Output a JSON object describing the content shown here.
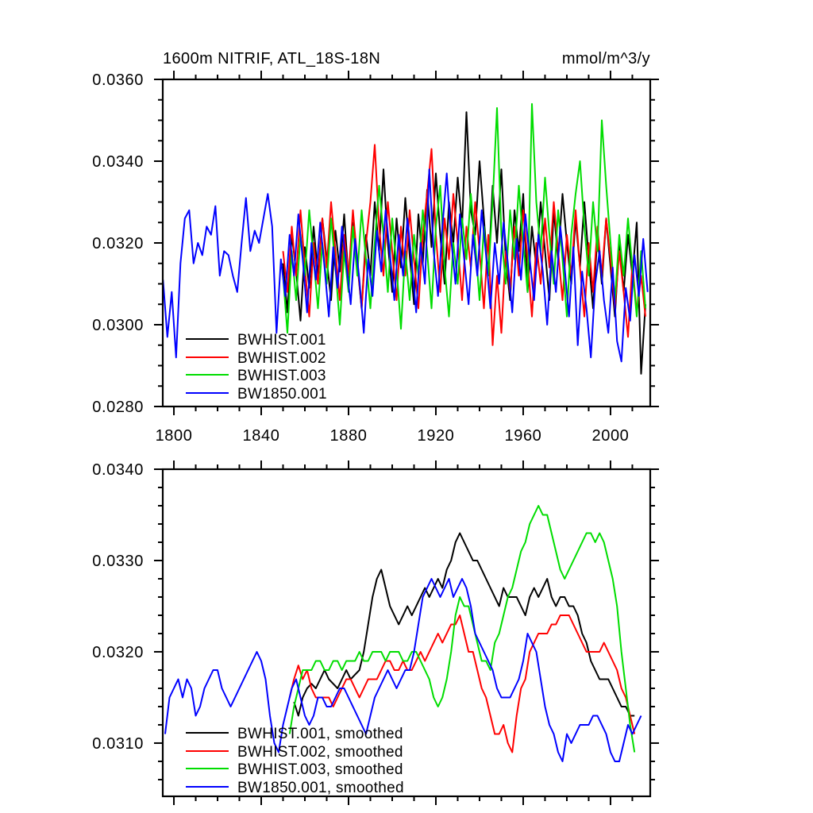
{
  "figure": {
    "background": "#ffffff",
    "axis_color": "#000000"
  },
  "chart_data": [
    {
      "type": "line",
      "title": "1600m NITRIF, ATL_18S-18N",
      "units": "mmol/m^3/y",
      "xlabel": "",
      "ylabel": "",
      "grid": false,
      "legend_position": "lower-left-inside",
      "xlim": [
        1794.9,
        2018.2
      ],
      "ylim": [
        0.028,
        0.036
      ],
      "x_ticks": [
        1800,
        1840,
        1880,
        1920,
        1960,
        2000
      ],
      "x_tick_labels": [
        "1800",
        "1840",
        "1880",
        "1920",
        "1960",
        "2000"
      ],
      "x_minor_step": 10,
      "y_ticks": [
        0.028,
        0.03,
        0.032,
        0.034,
        0.036
      ],
      "y_tick_labels": [
        "0.0280",
        "0.0300",
        "0.0320",
        "0.0340",
        "0.0360"
      ],
      "y_minor_step": 0.0005,
      "legend": [
        "BWHIST.001",
        "BWHIST.002",
        "BWHIST.003",
        "BW1850.001"
      ],
      "series": [
        {
          "name": "BWHIST.001",
          "color": "#000000",
          "x_start": 1850,
          "x_step": 2,
          "values": [
            0.0315,
            0.0303,
            0.0322,
            0.0313,
            0.0301,
            0.0319,
            0.0309,
            0.0324,
            0.0312,
            0.0326,
            0.0316,
            0.0306,
            0.0323,
            0.0313,
            0.0327,
            0.0311,
            0.0325,
            0.0315,
            0.0304,
            0.0322,
            0.0312,
            0.033,
            0.0318,
            0.0338,
            0.032,
            0.0308,
            0.0326,
            0.0314,
            0.0331,
            0.0317,
            0.0305,
            0.0327,
            0.0315,
            0.0333,
            0.0319,
            0.0337,
            0.0322,
            0.031,
            0.033,
            0.032,
            0.0336,
            0.0324,
            0.0352,
            0.0328,
            0.0322,
            0.034,
            0.0326,
            0.0312,
            0.0334,
            0.032,
            0.0338,
            0.0316,
            0.0306,
            0.0328,
            0.0318,
            0.0332,
            0.0308,
            0.0324,
            0.0314,
            0.033,
            0.0318,
            0.0306,
            0.0328,
            0.0316,
            0.0332,
            0.032,
            0.031,
            0.0326,
            0.0314,
            0.033,
            0.0316,
            0.0304,
            0.0322,
            0.031,
            0.0326,
            0.0314,
            0.0302,
            0.032,
            0.0308,
            0.0322,
            0.0312,
            0.0325,
            0.0288,
            0.0305
          ]
        },
        {
          "name": "BWHIST.002",
          "color": "#ff0000",
          "x_start": 1850,
          "x_step": 2,
          "values": [
            0.0318,
            0.0308,
            0.0324,
            0.0312,
            0.0328,
            0.0314,
            0.0302,
            0.032,
            0.031,
            0.0326,
            0.0314,
            0.033,
            0.0318,
            0.0306,
            0.0322,
            0.0312,
            0.0328,
            0.0316,
            0.0304,
            0.032,
            0.033,
            0.0344,
            0.0324,
            0.0312,
            0.033,
            0.0318,
            0.0306,
            0.0324,
            0.0312,
            0.0328,
            0.0316,
            0.0304,
            0.0322,
            0.0332,
            0.0343,
            0.0322,
            0.0308,
            0.0326,
            0.0316,
            0.0332,
            0.032,
            0.0306,
            0.0324,
            0.0314,
            0.033,
            0.0318,
            0.0304,
            0.0322,
            0.0295,
            0.0312,
            0.0298,
            0.0318,
            0.0308,
            0.0324,
            0.0312,
            0.0328,
            0.0316,
            0.0302,
            0.032,
            0.031,
            0.0326,
            0.0314,
            0.033,
            0.0318,
            0.0306,
            0.0322,
            0.0312,
            0.0328,
            0.0314,
            0.0302,
            0.032,
            0.0308,
            0.0324,
            0.0312,
            0.0326,
            0.0316,
            0.0304,
            0.0318,
            0.0308,
            0.0297,
            0.0315,
            0.0303,
            0.0312,
            0.0302
          ]
        },
        {
          "name": "BWHIST.003",
          "color": "#00dd00",
          "x_start": 1850,
          "x_step": 2,
          "values": [
            0.0312,
            0.0298,
            0.0318,
            0.0306,
            0.0322,
            0.0312,
            0.0328,
            0.0316,
            0.0304,
            0.032,
            0.031,
            0.0326,
            0.0314,
            0.03,
            0.0318,
            0.0308,
            0.0324,
            0.0312,
            0.0328,
            0.0316,
            0.0304,
            0.032,
            0.0334,
            0.0322,
            0.0308,
            0.0326,
            0.0314,
            0.0299,
            0.0318,
            0.0306,
            0.0322,
            0.0312,
            0.0328,
            0.0318,
            0.0304,
            0.0324,
            0.0334,
            0.0314,
            0.0302,
            0.032,
            0.031,
            0.0326,
            0.0316,
            0.0332,
            0.032,
            0.0306,
            0.0324,
            0.0312,
            0.033,
            0.0353,
            0.0322,
            0.031,
            0.0328,
            0.0316,
            0.0334,
            0.032,
            0.0308,
            0.0354,
            0.033,
            0.0318,
            0.0336,
            0.0322,
            0.031,
            0.0328,
            0.0316,
            0.0302,
            0.0322,
            0.0332,
            0.034,
            0.0324,
            0.0312,
            0.033,
            0.0318,
            0.035,
            0.0334,
            0.032,
            0.0306,
            0.0322,
            0.0312,
            0.0326,
            0.0314,
            0.0302,
            0.0318,
            0.0304
          ]
        },
        {
          "name": "BW1850.001",
          "color": "#0000ff",
          "x_start": 1795,
          "x_step": 2,
          "values": [
            0.0311,
            0.0297,
            0.0308,
            0.0292,
            0.0315,
            0.0326,
            0.0328,
            0.0315,
            0.032,
            0.0317,
            0.0324,
            0.0322,
            0.0329,
            0.0312,
            0.0318,
            0.0317,
            0.0312,
            0.0308,
            0.032,
            0.0331,
            0.0318,
            0.0323,
            0.032,
            0.0326,
            0.0332,
            0.0324,
            0.0298,
            0.0316,
            0.0307,
            0.0322,
            0.0312,
            0.0327,
            0.0316,
            0.0303,
            0.032,
            0.0311,
            0.0325,
            0.0314,
            0.0302,
            0.0319,
            0.0309,
            0.0324,
            0.0315,
            0.0305,
            0.0321,
            0.0311,
            0.0298,
            0.0316,
            0.0307,
            0.0323,
            0.0313,
            0.0328,
            0.0317,
            0.0306,
            0.0322,
            0.0312,
            0.0326,
            0.0315,
            0.0303,
            0.032,
            0.031,
            0.0338,
            0.0318,
            0.0307,
            0.0324,
            0.0337,
            0.0321,
            0.031,
            0.0327,
            0.0316,
            0.0305,
            0.0322,
            0.0312,
            0.0328,
            0.0317,
            0.0304,
            0.032,
            0.031,
            0.0325,
            0.0315,
            0.0303,
            0.0321,
            0.0311,
            0.0327,
            0.0316,
            0.0306,
            0.0322,
            0.0313,
            0.03,
            0.0318,
            0.0308,
            0.0324,
            0.0314,
            0.0302,
            0.0319,
            0.0295,
            0.0313,
            0.0304,
            0.0292,
            0.031,
            0.0318,
            0.0306,
            0.0298,
            0.0314,
            0.0296,
            0.0291,
            0.0309,
            0.0301,
            0.0317,
            0.0307,
            0.0321,
            0.0308
          ]
        }
      ]
    },
    {
      "type": "line",
      "title": "",
      "units": "",
      "xlabel": "",
      "ylabel": "",
      "grid": false,
      "legend_position": "lower-left-inside",
      "xlim": [
        1794.9,
        2018.2
      ],
      "ylim": [
        0.030417,
        0.034
      ],
      "x_ticks": [
        1800,
        1840,
        1880,
        1920,
        1960,
        2000
      ],
      "x_tick_labels": [],
      "x_minor_step": 10,
      "y_ticks": [
        0.031,
        0.032,
        0.033,
        0.034
      ],
      "y_tick_labels": [
        "0.0310",
        "0.0320",
        "0.0330",
        "0.0340"
      ],
      "y_minor_step": 0.0002,
      "legend": [
        "BWHIST.001, smoothed",
        "BWHIST.002, smoothed",
        "BWHIST.003, smoothed",
        "BW1850.001, smoothed"
      ],
      "series": [
        {
          "name": "BWHIST.001, smoothed",
          "color": "#000000",
          "x_start": 1855,
          "x_step": 2,
          "values": [
            0.03145,
            0.0313,
            0.0315,
            0.0316,
            0.03165,
            0.0316,
            0.0317,
            0.0318,
            0.0317,
            0.03165,
            0.0316,
            0.0317,
            0.0318,
            0.0317,
            0.03175,
            0.0318,
            0.032,
            0.0323,
            0.0326,
            0.0328,
            0.0329,
            0.0327,
            0.0325,
            0.0324,
            0.0323,
            0.0324,
            0.0325,
            0.0324,
            0.0325,
            0.0326,
            0.0327,
            0.0326,
            0.0327,
            0.0328,
            0.0327,
            0.0329,
            0.033,
            0.0332,
            0.0333,
            0.0332,
            0.0331,
            0.033,
            0.033,
            0.0329,
            0.0328,
            0.0327,
            0.0326,
            0.0325,
            0.0327,
            0.0326,
            0.0326,
            0.0326,
            0.0325,
            0.0324,
            0.0326,
            0.0327,
            0.0326,
            0.0327,
            0.0328,
            0.0326,
            0.0325,
            0.0326,
            0.0326,
            0.0325,
            0.0325,
            0.0324,
            0.0322,
            0.0321,
            0.0319,
            0.0318,
            0.0317,
            0.0317,
            0.0317,
            0.0316,
            0.0315,
            0.0314,
            0.0314,
            0.0313,
            0.0313
          ]
        },
        {
          "name": "BWHIST.002, smoothed",
          "color": "#ff0000",
          "x_start": 1853,
          "x_step": 2,
          "values": [
            0.0315,
            0.0317,
            0.03185,
            0.0317,
            0.0318,
            0.0316,
            0.0315,
            0.0315,
            0.0315,
            0.0315,
            0.0314,
            0.0315,
            0.0316,
            0.0317,
            0.0317,
            0.0316,
            0.0315,
            0.0316,
            0.0317,
            0.0317,
            0.0317,
            0.0318,
            0.0319,
            0.0319,
            0.0318,
            0.0318,
            0.0319,
            0.0318,
            0.0318,
            0.0319,
            0.032,
            0.0319,
            0.032,
            0.0321,
            0.0322,
            0.0321,
            0.0322,
            0.0323,
            0.0323,
            0.0324,
            0.0322,
            0.032,
            0.032,
            0.0318,
            0.0316,
            0.0315,
            0.0313,
            0.0311,
            0.0311,
            0.0312,
            0.031,
            0.0309,
            0.0313,
            0.0316,
            0.0317,
            0.032,
            0.0321,
            0.0322,
            0.0322,
            0.0322,
            0.0323,
            0.0323,
            0.0324,
            0.0324,
            0.0324,
            0.0323,
            0.0322,
            0.0321,
            0.032,
            0.032,
            0.032,
            0.032,
            0.0321,
            0.032,
            0.0319,
            0.0318,
            0.0316,
            0.0315,
            0.0313,
            0.0311
          ]
        },
        {
          "name": "BWHIST.003, smoothed",
          "color": "#00dd00",
          "x_start": 1853,
          "x_step": 2,
          "values": [
            0.0311,
            0.0314,
            0.0316,
            0.0318,
            0.0318,
            0.0318,
            0.0319,
            0.0319,
            0.0318,
            0.0318,
            0.0319,
            0.0319,
            0.0318,
            0.0319,
            0.0319,
            0.0319,
            0.032,
            0.0319,
            0.0319,
            0.032,
            0.032,
            0.032,
            0.0319,
            0.032,
            0.032,
            0.032,
            0.0319,
            0.0319,
            0.032,
            0.032,
            0.0319,
            0.0318,
            0.0317,
            0.0315,
            0.0314,
            0.0315,
            0.0317,
            0.032,
            0.0324,
            0.0326,
            0.0325,
            0.0325,
            0.0323,
            0.0321,
            0.0319,
            0.0319,
            0.0318,
            0.0321,
            0.0322,
            0.0324,
            0.0326,
            0.0327,
            0.0329,
            0.0331,
            0.0332,
            0.0334,
            0.0335,
            0.0336,
            0.0335,
            0.0335,
            0.0333,
            0.0331,
            0.0329,
            0.0328,
            0.0329,
            0.033,
            0.0331,
            0.0332,
            0.0333,
            0.0333,
            0.0332,
            0.0333,
            0.0332,
            0.033,
            0.0328,
            0.0325,
            0.032,
            0.0316,
            0.0312,
            0.0309
          ]
        },
        {
          "name": "BW1850.001, smoothed",
          "color": "#0000ff",
          "x_start": 1796,
          "x_step": 2,
          "values": [
            0.0311,
            0.0315,
            0.0316,
            0.0317,
            0.0315,
            0.0317,
            0.0316,
            0.0313,
            0.0314,
            0.0316,
            0.0317,
            0.0318,
            0.0318,
            0.0316,
            0.0315,
            0.0314,
            0.0315,
            0.0316,
            0.0317,
            0.0318,
            0.0319,
            0.032,
            0.0319,
            0.0317,
            0.0313,
            0.031,
            0.0309,
            0.0312,
            0.0314,
            0.0316,
            0.0317,
            0.0315,
            0.0313,
            0.0312,
            0.0313,
            0.0315,
            0.0315,
            0.0314,
            0.0314,
            0.0315,
            0.0316,
            0.0316,
            0.0315,
            0.0314,
            0.0313,
            0.0312,
            0.0311,
            0.0313,
            0.0315,
            0.0316,
            0.0317,
            0.0318,
            0.0317,
            0.0316,
            0.0317,
            0.0318,
            0.0318,
            0.032,
            0.0323,
            0.0326,
            0.0327,
            0.0328,
            0.0327,
            0.0326,
            0.0327,
            0.0328,
            0.0326,
            0.0327,
            0.0328,
            0.0327,
            0.0325,
            0.0322,
            0.0321,
            0.032,
            0.0319,
            0.0318,
            0.0316,
            0.0315,
            0.0315,
            0.0315,
            0.0316,
            0.0317,
            0.0319,
            0.0322,
            0.0321,
            0.032,
            0.0317,
            0.0314,
            0.0312,
            0.0311,
            0.0309,
            0.0308,
            0.0311,
            0.031,
            0.0311,
            0.0312,
            0.0312,
            0.0312,
            0.0313,
            0.0313,
            0.0312,
            0.0311,
            0.0309,
            0.0308,
            0.0308,
            0.031,
            0.0312,
            0.0311,
            0.0312,
            0.0313
          ]
        }
      ]
    }
  ]
}
